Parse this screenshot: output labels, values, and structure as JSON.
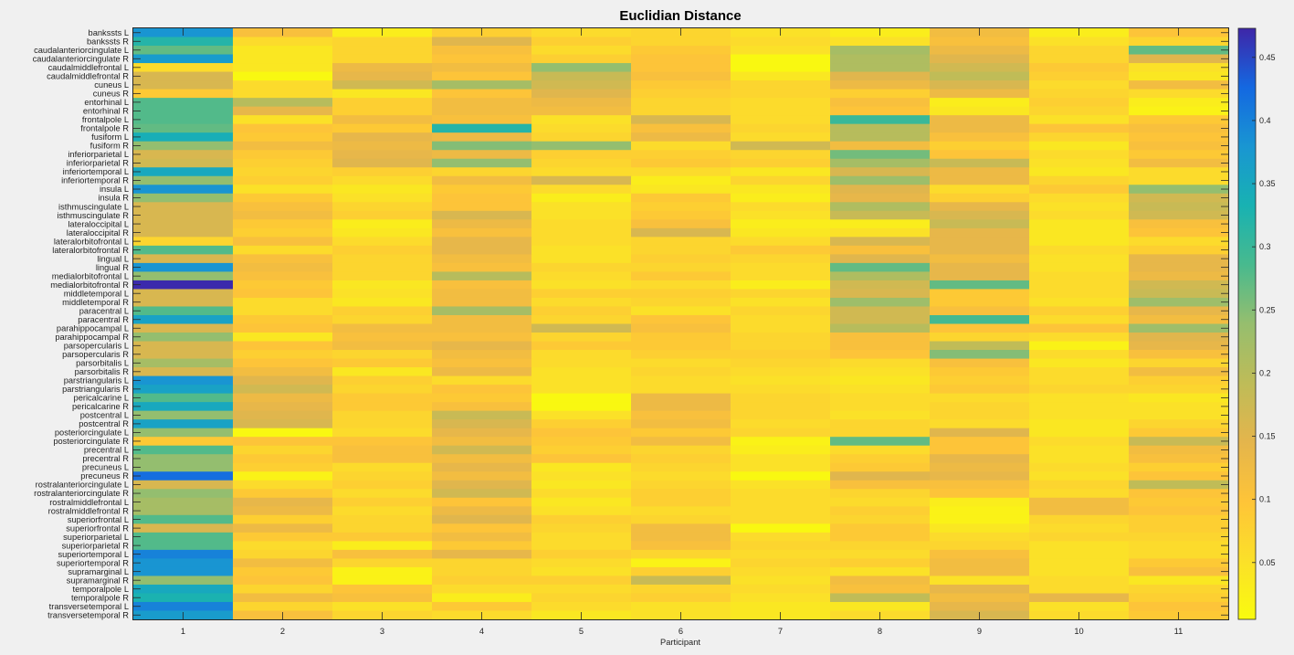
{
  "chart_data": {
    "type": "heatmap",
    "title": "Euclidian Distance",
    "xlabel": "Participant",
    "ylabel": "",
    "x_categories": [
      "1",
      "2",
      "3",
      "4",
      "5",
      "6",
      "7",
      "8",
      "9",
      "10",
      "11"
    ],
    "y_categories": [
      "bankssts L",
      "bankssts R",
      "caudalanteriorcingulate L",
      "caudalanteriorcingulate R",
      "caudalmiddlefrontal L",
      "caudalmiddlefrontal R",
      "cuneus L",
      "cuneus R",
      "entorhinal L",
      "entorhinal R",
      "frontalpole L",
      "frontalpole R",
      "fusiform L",
      "fusiform R",
      "inferiorparietal L",
      "inferiorparietal R",
      "inferiortemporal L",
      "inferiortemporal R",
      "insula L",
      "insula R",
      "isthmuscingulate L",
      "isthmuscingulate R",
      "lateraloccipital L",
      "lateraloccipital R",
      "lateralorbitofrontal L",
      "lateralorbitofrontal R",
      "lingual L",
      "lingual R",
      "medialorbitofrontal L",
      "medialorbitofrontal R",
      "middletemporal L",
      "middletemporal R",
      "paracentral L",
      "paracentral R",
      "parahippocampal L",
      "parahippocampal R",
      "parsopercularis L",
      "parsopercularis R",
      "parsorbitalis L",
      "parsorbitalis R",
      "parstriangularis L",
      "parstriangularis R",
      "pericalcarine L",
      "pericalcarine R",
      "postcentral L",
      "postcentral R",
      "posteriorcingulate L",
      "posteriorcingulate R",
      "precentral L",
      "precentral R",
      "precuneus L",
      "precuneus R",
      "rostralanteriorcingulate L",
      "rostralanteriorcingulate R",
      "rostralmiddlefrontal L",
      "rostralmiddlefrontal R",
      "superiorfrontal L",
      "superiorfrontal R",
      "superiorparietal L",
      "superiorparietal R",
      "superiortemporal L",
      "superiortemporal R",
      "supramarginal L",
      "supramarginal R",
      "temporalpole L",
      "temporalpole R",
      "transversetemporal L",
      "transversetemporal R"
    ],
    "colorbar": {
      "range": [
        0.005,
        0.473
      ],
      "ticks": [
        0.05,
        0.1,
        0.15,
        0.2,
        0.25,
        0.3,
        0.35,
        0.4,
        0.45
      ],
      "colormap": "parula"
    },
    "values": [
      [
        0.38,
        0.11,
        0.03,
        0.08,
        0.06,
        0.07,
        0.05,
        0.03,
        0.12,
        0.03,
        0.1
      ],
      [
        0.32,
        0.06,
        0.07,
        0.15,
        0.08,
        0.07,
        0.06,
        0.05,
        0.11,
        0.05,
        0.07
      ],
      [
        0.27,
        0.04,
        0.07,
        0.11,
        0.06,
        0.09,
        0.05,
        0.22,
        0.13,
        0.07,
        0.27
      ],
      [
        0.37,
        0.04,
        0.07,
        0.1,
        0.08,
        0.1,
        0.01,
        0.21,
        0.15,
        0.07,
        0.15
      ],
      [
        0.06,
        0.04,
        0.13,
        0.12,
        0.24,
        0.1,
        0.01,
        0.21,
        0.17,
        0.09,
        0.05
      ],
      [
        0.16,
        0.01,
        0.14,
        0.1,
        0.18,
        0.11,
        0.04,
        0.15,
        0.19,
        0.08,
        0.04
      ],
      [
        0.16,
        0.06,
        0.17,
        0.22,
        0.17,
        0.09,
        0.07,
        0.13,
        0.16,
        0.06,
        0.12
      ],
      [
        0.09,
        0.06,
        0.04,
        0.1,
        0.15,
        0.08,
        0.07,
        0.08,
        0.13,
        0.07,
        0.06
      ],
      [
        0.28,
        0.2,
        0.08,
        0.12,
        0.13,
        0.07,
        0.06,
        0.11,
        0.03,
        0.08,
        0.03
      ],
      [
        0.28,
        0.14,
        0.08,
        0.12,
        0.12,
        0.07,
        0.06,
        0.1,
        0.04,
        0.07,
        0.02
      ],
      [
        0.28,
        0.05,
        0.12,
        0.11,
        0.05,
        0.16,
        0.06,
        0.3,
        0.13,
        0.05,
        0.09
      ],
      [
        0.27,
        0.1,
        0.09,
        0.32,
        0.06,
        0.11,
        0.07,
        0.2,
        0.13,
        0.1,
        0.11
      ],
      [
        0.34,
        0.09,
        0.14,
        0.13,
        0.07,
        0.13,
        0.06,
        0.2,
        0.11,
        0.07,
        0.1
      ],
      [
        0.24,
        0.12,
        0.13,
        0.25,
        0.24,
        0.06,
        0.17,
        0.12,
        0.08,
        0.04,
        0.11
      ],
      [
        0.16,
        0.09,
        0.14,
        0.13,
        0.08,
        0.08,
        0.07,
        0.26,
        0.1,
        0.06,
        0.09
      ],
      [
        0.17,
        0.08,
        0.15,
        0.24,
        0.07,
        0.09,
        0.08,
        0.22,
        0.18,
        0.05,
        0.12
      ],
      [
        0.35,
        0.07,
        0.08,
        0.07,
        0.06,
        0.06,
        0.04,
        0.16,
        0.13,
        0.04,
        0.06
      ],
      [
        0.24,
        0.08,
        0.06,
        0.12,
        0.16,
        0.03,
        0.07,
        0.23,
        0.13,
        0.07,
        0.06
      ],
      [
        0.38,
        0.05,
        0.04,
        0.09,
        0.06,
        0.04,
        0.04,
        0.15,
        0.06,
        0.09,
        0.24
      ],
      [
        0.24,
        0.09,
        0.05,
        0.1,
        0.03,
        0.09,
        0.03,
        0.14,
        0.08,
        0.06,
        0.17
      ],
      [
        0.16,
        0.11,
        0.07,
        0.1,
        0.05,
        0.08,
        0.06,
        0.21,
        0.14,
        0.05,
        0.18
      ],
      [
        0.16,
        0.12,
        0.08,
        0.16,
        0.05,
        0.09,
        0.05,
        0.18,
        0.16,
        0.06,
        0.17
      ],
      [
        0.16,
        0.09,
        0.03,
        0.13,
        0.06,
        0.11,
        0.03,
        0.03,
        0.18,
        0.04,
        0.11
      ],
      [
        0.16,
        0.08,
        0.04,
        0.11,
        0.06,
        0.16,
        0.04,
        0.05,
        0.14,
        0.04,
        0.1
      ],
      [
        0.07,
        0.11,
        0.06,
        0.14,
        0.06,
        0.07,
        0.06,
        0.16,
        0.14,
        0.04,
        0.06
      ],
      [
        0.28,
        0.06,
        0.08,
        0.14,
        0.05,
        0.07,
        0.09,
        0.11,
        0.14,
        0.06,
        0.08
      ],
      [
        0.16,
        0.11,
        0.07,
        0.12,
        0.05,
        0.08,
        0.07,
        0.15,
        0.12,
        0.05,
        0.14
      ],
      [
        0.38,
        0.12,
        0.07,
        0.11,
        0.07,
        0.07,
        0.06,
        0.27,
        0.14,
        0.05,
        0.14
      ],
      [
        0.24,
        0.11,
        0.07,
        0.2,
        0.06,
        0.09,
        0.06,
        0.21,
        0.14,
        0.06,
        0.13
      ],
      [
        0.47,
        0.09,
        0.04,
        0.11,
        0.05,
        0.06,
        0.03,
        0.17,
        0.27,
        0.06,
        0.17
      ],
      [
        0.16,
        0.1,
        0.05,
        0.12,
        0.08,
        0.08,
        0.07,
        0.16,
        0.09,
        0.06,
        0.18
      ],
      [
        0.16,
        0.06,
        0.04,
        0.12,
        0.06,
        0.07,
        0.05,
        0.23,
        0.09,
        0.05,
        0.23
      ],
      [
        0.28,
        0.06,
        0.08,
        0.22,
        0.08,
        0.05,
        0.07,
        0.17,
        0.11,
        0.08,
        0.14
      ],
      [
        0.36,
        0.09,
        0.07,
        0.12,
        0.07,
        0.1,
        0.06,
        0.17,
        0.29,
        0.06,
        0.12
      ],
      [
        0.16,
        0.1,
        0.12,
        0.12,
        0.17,
        0.11,
        0.06,
        0.2,
        0.1,
        0.1,
        0.23
      ],
      [
        0.24,
        0.04,
        0.11,
        0.11,
        0.07,
        0.09,
        0.07,
        0.11,
        0.07,
        0.06,
        0.15
      ],
      [
        0.16,
        0.1,
        0.12,
        0.14,
        0.09,
        0.09,
        0.07,
        0.11,
        0.19,
        0.02,
        0.14
      ],
      [
        0.16,
        0.08,
        0.07,
        0.12,
        0.06,
        0.08,
        0.08,
        0.1,
        0.25,
        0.06,
        0.11
      ],
      [
        0.22,
        0.1,
        0.09,
        0.11,
        0.06,
        0.06,
        0.07,
        0.06,
        0.11,
        0.04,
        0.07
      ],
      [
        0.16,
        0.12,
        0.04,
        0.13,
        0.05,
        0.07,
        0.06,
        0.05,
        0.09,
        0.06,
        0.12
      ],
      [
        0.38,
        0.15,
        0.08,
        0.06,
        0.05,
        0.06,
        0.05,
        0.04,
        0.08,
        0.06,
        0.08
      ],
      [
        0.36,
        0.17,
        0.07,
        0.1,
        0.05,
        0.06,
        0.06,
        0.05,
        0.09,
        0.07,
        0.07
      ],
      [
        0.28,
        0.13,
        0.09,
        0.09,
        0.01,
        0.13,
        0.07,
        0.06,
        0.06,
        0.05,
        0.04
      ],
      [
        0.35,
        0.14,
        0.09,
        0.11,
        0.01,
        0.13,
        0.07,
        0.06,
        0.07,
        0.05,
        0.05
      ],
      [
        0.24,
        0.15,
        0.07,
        0.18,
        0.05,
        0.11,
        0.07,
        0.05,
        0.07,
        0.05,
        0.05
      ],
      [
        0.36,
        0.16,
        0.07,
        0.16,
        0.08,
        0.12,
        0.06,
        0.07,
        0.06,
        0.04,
        0.07
      ],
      [
        0.24,
        0.01,
        0.06,
        0.14,
        0.1,
        0.09,
        0.07,
        0.07,
        0.15,
        0.04,
        0.09
      ],
      [
        0.09,
        0.1,
        0.1,
        0.12,
        0.09,
        0.12,
        0.02,
        0.27,
        0.1,
        0.06,
        0.18
      ],
      [
        0.28,
        0.07,
        0.11,
        0.17,
        0.08,
        0.07,
        0.03,
        0.06,
        0.1,
        0.05,
        0.12
      ],
      [
        0.24,
        0.09,
        0.11,
        0.12,
        0.1,
        0.08,
        0.05,
        0.08,
        0.14,
        0.05,
        0.11
      ],
      [
        0.24,
        0.08,
        0.06,
        0.14,
        0.04,
        0.07,
        0.05,
        0.09,
        0.13,
        0.06,
        0.08
      ],
      [
        0.42,
        0.02,
        0.07,
        0.12,
        0.05,
        0.06,
        0.01,
        0.15,
        0.14,
        0.05,
        0.1
      ],
      [
        0.16,
        0.06,
        0.08,
        0.15,
        0.04,
        0.07,
        0.05,
        0.11,
        0.11,
        0.07,
        0.19
      ],
      [
        0.24,
        0.09,
        0.06,
        0.17,
        0.06,
        0.08,
        0.06,
        0.07,
        0.1,
        0.06,
        0.1
      ],
      [
        0.22,
        0.14,
        0.08,
        0.1,
        0.04,
        0.08,
        0.06,
        0.06,
        0.03,
        0.12,
        0.09
      ],
      [
        0.22,
        0.13,
        0.06,
        0.13,
        0.05,
        0.06,
        0.06,
        0.08,
        0.02,
        0.12,
        0.1
      ],
      [
        0.28,
        0.08,
        0.07,
        0.15,
        0.08,
        0.07,
        0.06,
        0.07,
        0.02,
        0.07,
        0.08
      ],
      [
        0.16,
        0.13,
        0.07,
        0.1,
        0.07,
        0.12,
        0.01,
        0.09,
        0.04,
        0.06,
        0.08
      ],
      [
        0.28,
        0.09,
        0.09,
        0.12,
        0.06,
        0.12,
        0.06,
        0.09,
        0.06,
        0.07,
        0.07
      ],
      [
        0.28,
        0.06,
        0.03,
        0.09,
        0.06,
        0.11,
        0.07,
        0.07,
        0.07,
        0.05,
        0.06
      ],
      [
        0.4,
        0.07,
        0.11,
        0.14,
        0.08,
        0.07,
        0.06,
        0.06,
        0.11,
        0.05,
        0.06
      ],
      [
        0.38,
        0.12,
        0.07,
        0.07,
        0.06,
        0.02,
        0.07,
        0.08,
        0.12,
        0.05,
        0.09
      ],
      [
        0.38,
        0.09,
        0.02,
        0.07,
        0.05,
        0.08,
        0.06,
        0.05,
        0.12,
        0.05,
        0.11
      ],
      [
        0.24,
        0.1,
        0.02,
        0.08,
        0.08,
        0.18,
        0.05,
        0.12,
        0.05,
        0.06,
        0.04
      ],
      [
        0.35,
        0.07,
        0.1,
        0.06,
        0.06,
        0.07,
        0.06,
        0.11,
        0.14,
        0.06,
        0.07
      ],
      [
        0.33,
        0.12,
        0.11,
        0.03,
        0.07,
        0.08,
        0.05,
        0.19,
        0.12,
        0.14,
        0.08
      ],
      [
        0.4,
        0.07,
        0.05,
        0.09,
        0.06,
        0.05,
        0.04,
        0.04,
        0.14,
        0.05,
        0.1
      ],
      [
        0.37,
        0.11,
        0.07,
        0.06,
        0.04,
        0.05,
        0.04,
        0.06,
        0.16,
        0.06,
        0.09
      ]
    ]
  }
}
